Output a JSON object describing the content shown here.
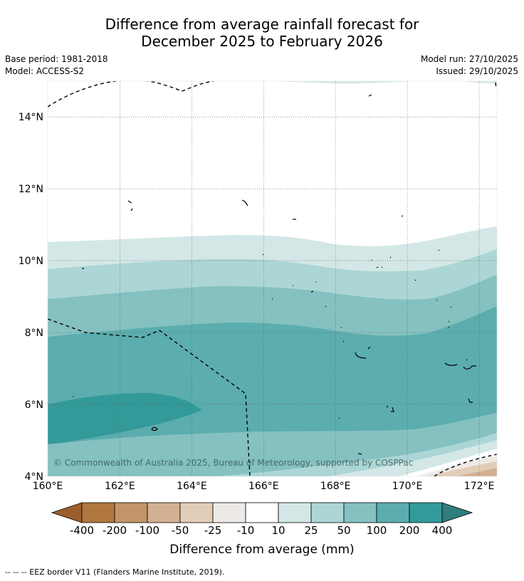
{
  "title": {
    "line1": "Difference from average rainfall forecast for",
    "line2": "December 2025 to February 2026"
  },
  "meta": {
    "base_period": "Base period: 1981-2018",
    "model": "Model: ACCESS-S2",
    "model_run": "Model run: 27/10/2025",
    "issued": "Issued: 29/10/2025"
  },
  "map": {
    "lon_range": [
      160,
      172.5
    ],
    "lat_range": [
      4,
      15
    ],
    "lon_ticks": [
      "160°E",
      "162°E",
      "164°E",
      "166°E",
      "168°E",
      "170°E",
      "172°E"
    ],
    "lat_ticks": [
      "4°N",
      "6°N",
      "8°N",
      "10°N",
      "12°N",
      "14°N"
    ],
    "copyright": "© Commonwealth of Australia 2025, Bureau of Meteorology, supported by COSPPac",
    "colors": {
      "c10_25": "#d3e8e6",
      "c25_50": "#acd6d5",
      "c50_100": "#84c1c0",
      "c100_200": "#5cadad",
      "c200_400": "#339a99",
      "cneg10": "#ffffff",
      "cneg25": "#ede9e5",
      "cneg50": "#e2cdb9",
      "cneg100": "#d2b091",
      "eez": "#000000"
    }
  },
  "colorbar": {
    "labels": [
      "-400",
      "-200",
      "-100",
      "-50",
      "-25",
      "-10",
      "10",
      "25",
      "50",
      "100",
      "200",
      "400"
    ],
    "colors": [
      "#9b5f2d",
      "#b0783e",
      "#c29467",
      "#d2b091",
      "#e2cdb9",
      "#ede9e5",
      "#ffffff",
      "#d3e8e6",
      "#acd6d5",
      "#84c1c0",
      "#5cadad",
      "#339a99",
      "#2f7d7c"
    ],
    "title": "Difference from average (mm)"
  },
  "footnote": "--  --  -- EEZ border V11 (Flanders Marine Institute, 2019)."
}
